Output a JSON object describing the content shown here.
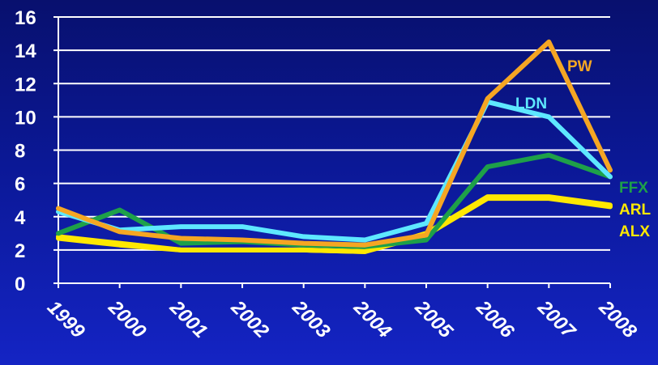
{
  "chart_data": {
    "type": "line",
    "x": [
      "1999",
      "2000",
      "2001",
      "2002",
      "2003",
      "2004",
      "2005",
      "2006",
      "2007",
      "2008"
    ],
    "ylim": [
      0,
      16
    ],
    "yticks": [
      "0",
      "2",
      "4",
      "6",
      "8",
      "10",
      "12",
      "14",
      "16"
    ],
    "grid": true,
    "series": [
      {
        "name": "PW",
        "color": "#f5a623",
        "values": [
          4.5,
          3.1,
          2.7,
          2.6,
          2.4,
          2.3,
          2.9,
          11.1,
          14.5,
          6.8
        ]
      },
      {
        "name": "LDN",
        "color": "#5ee8ff",
        "values": [
          4.3,
          3.2,
          3.4,
          3.4,
          2.8,
          2.6,
          3.6,
          10.9,
          10.0,
          6.4
        ]
      },
      {
        "name": "FFX",
        "color": "#1ea049",
        "values": [
          3.0,
          4.4,
          2.4,
          2.5,
          2.3,
          2.2,
          2.6,
          7.0,
          7.7,
          6.4
        ]
      },
      {
        "name": "ARL",
        "color": "#ffe800",
        "values": [
          2.8,
          2.4,
          2.0,
          2.0,
          2.0,
          1.9,
          3.0,
          5.2,
          5.2,
          4.7
        ]
      },
      {
        "name": "ALX",
        "color": "#ffe800",
        "values": [
          2.7,
          2.3,
          2.0,
          2.0,
          2.0,
          1.9,
          2.9,
          5.1,
          5.1,
          4.6
        ]
      }
    ]
  }
}
